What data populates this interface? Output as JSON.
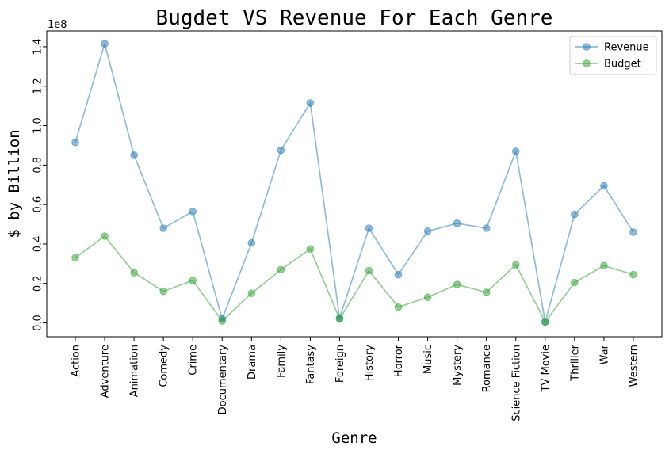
{
  "chart_data": {
    "type": "line",
    "title": "Bugdet VS Revenue For Each Genre",
    "xlabel": "Genre",
    "ylabel": "$ by Billion",
    "y_offset_label": "1e8",
    "ylim": [
      -0.07,
      1.48
    ],
    "yticks": [
      0.0,
      0.2,
      0.4,
      0.6,
      0.8,
      1.0,
      1.2,
      1.4
    ],
    "ytick_labels": [
      "0.0",
      "0.2",
      "0.4",
      "0.6",
      "0.8",
      "1.0",
      "1.2",
      "1.4"
    ],
    "legend_position": "top-right",
    "categories": [
      "Action",
      "Adventure",
      "Animation",
      "Comedy",
      "Crime",
      "Documentary",
      "Drama",
      "Family",
      "Fantasy",
      "Foreign",
      "History",
      "Horror",
      "Music",
      "Mystery",
      "Romance",
      "Science Fiction",
      "TV Movie",
      "Thriller",
      "War",
      "Western"
    ],
    "series": [
      {
        "name": "Revenue",
        "color": "#1f77b4",
        "values": [
          0.915,
          1.415,
          0.85,
          0.48,
          0.565,
          0.02,
          0.405,
          0.875,
          1.115,
          0.025,
          0.48,
          0.245,
          0.465,
          0.505,
          0.48,
          0.87,
          0.005,
          0.55,
          0.695,
          0.46
        ]
      },
      {
        "name": "Budget",
        "color": "#2ca02c",
        "values": [
          0.33,
          0.44,
          0.255,
          0.16,
          0.215,
          0.01,
          0.15,
          0.27,
          0.375,
          0.02,
          0.265,
          0.08,
          0.13,
          0.195,
          0.155,
          0.295,
          0.005,
          0.205,
          0.29,
          0.245
        ]
      }
    ]
  }
}
